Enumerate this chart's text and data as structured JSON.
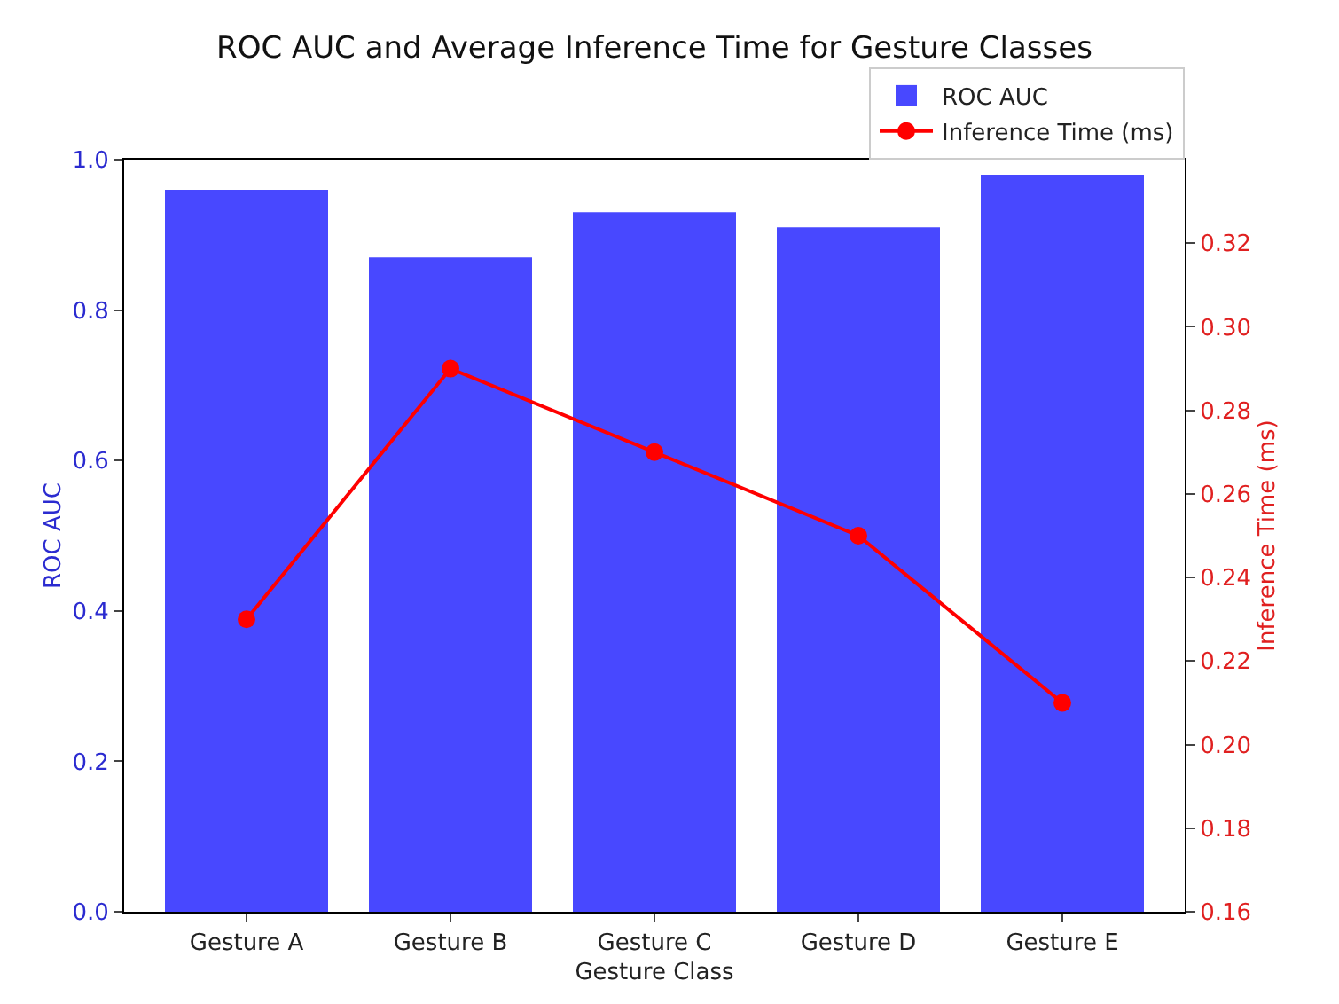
{
  "chart_data": {
    "type": "bar",
    "title": "ROC AUC and Average Inference Time for Gesture Classes",
    "xlabel": "Gesture Class",
    "ylabel": "ROC AUC",
    "y2label": "Inference Time (ms)",
    "categories": [
      "Gesture A",
      "Gesture B",
      "Gesture C",
      "Gesture D",
      "Gesture E"
    ],
    "series": [
      {
        "name": "ROC AUC",
        "color": "#4848ff",
        "values": [
          0.96,
          0.87,
          0.93,
          0.91,
          0.98
        ]
      },
      {
        "name": "Inference Time (ms)",
        "type": "line",
        "axis": "y2",
        "color": "#ff0000",
        "marker": "circle",
        "line_style": "solid",
        "values": [
          0.23,
          0.29,
          0.27,
          0.25,
          0.21
        ]
      }
    ],
    "ylim": [
      0,
      1.0
    ],
    "yticks": [
      {
        "value": 0,
        "label": "0.0"
      },
      0.2,
      0.4,
      0.6,
      0.8,
      {
        "value": 1,
        "label": "1.0"
      }
    ],
    "y2lim": [
      0.16,
      0.34
    ],
    "y2ticks": [
      0.16,
      0.18,
      {
        "value": 0.2,
        "label": "0.20"
      },
      0.22,
      0.24,
      0.26,
      0.28,
      {
        "value": 0.3,
        "label": "0.30"
      },
      0.32
    ],
    "legend": "top right"
  }
}
